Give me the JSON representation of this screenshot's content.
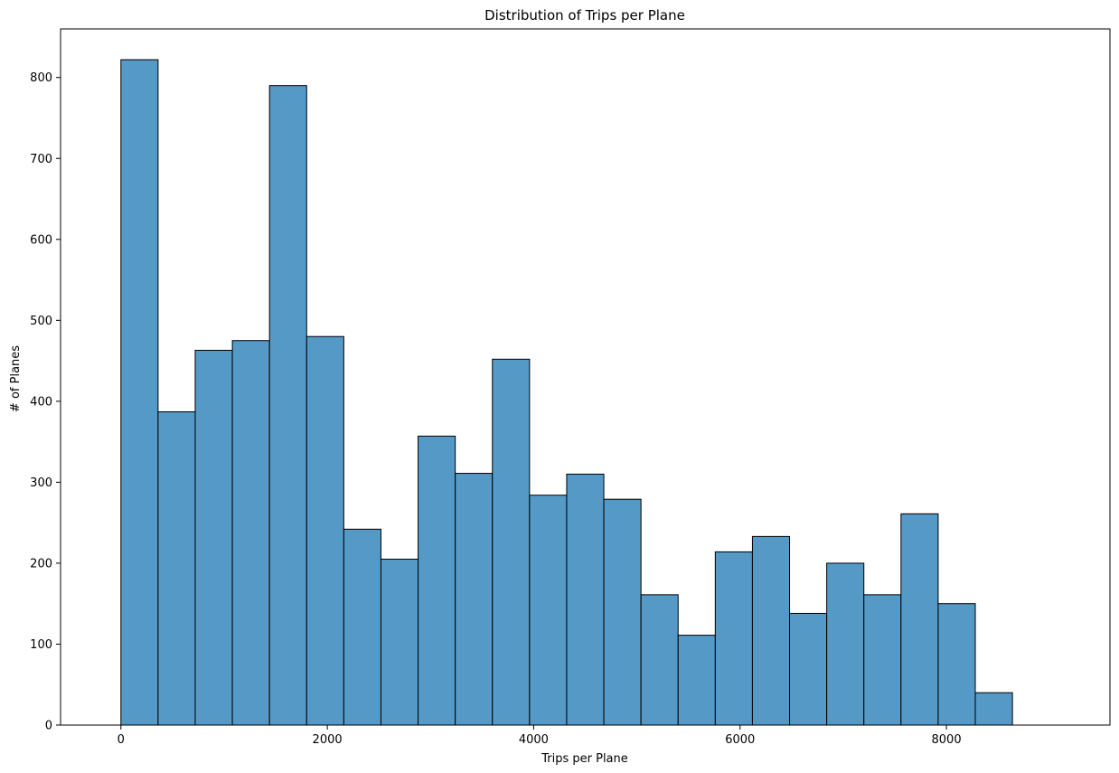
{
  "chart_data": {
    "type": "bar",
    "subtype": "histogram",
    "title": "Distribution of Trips per Plane",
    "xlabel": "Trips per Plane",
    "ylabel": "# of Planes",
    "bins": {
      "start": 0,
      "width": 360,
      "count": 25
    },
    "values": [
      822,
      387,
      463,
      475,
      790,
      480,
      242,
      205,
      357,
      311,
      452,
      284,
      310,
      279,
      161,
      111,
      214,
      233,
      138,
      200,
      161,
      261,
      150,
      40,
      0
    ],
    "xlim": [
      -585,
      9585
    ],
    "ylim": [
      0,
      860
    ],
    "xticks": [
      0,
      2000,
      4000,
      6000,
      8000
    ],
    "yticks": [
      0,
      100,
      200,
      300,
      400,
      500,
      600,
      700,
      800
    ],
    "grid": false,
    "legend": "none",
    "colors": {
      "bar_fill": "#5599c7",
      "bar_edge": "#000000",
      "axes": "#000000"
    }
  }
}
